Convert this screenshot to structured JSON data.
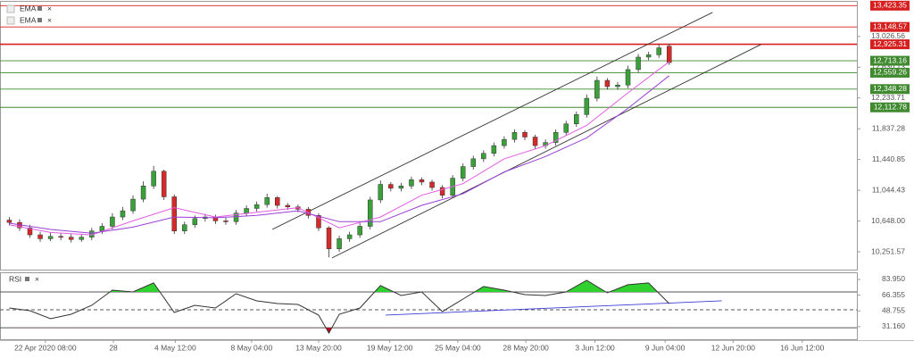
{
  "chart_data": [
    {
      "type": "candlestick",
      "open": [
        10660,
        10630,
        10560,
        10470,
        10420,
        10450,
        10440,
        10410,
        10440,
        10520,
        10580,
        10700,
        10780,
        10930,
        11100,
        11290,
        10960,
        10520,
        10600,
        10680,
        10700,
        10650,
        10640,
        10750,
        10810,
        10860,
        10950,
        10850,
        10830,
        10800,
        10720,
        10560,
        10290,
        10420,
        10470,
        10580,
        10920,
        11120,
        11070,
        11100,
        11180,
        11150,
        11080,
        10980,
        11200,
        11350,
        11450,
        11520,
        11620,
        11700,
        11790,
        11730,
        11620,
        11660,
        11790,
        11900,
        12020,
        12230,
        12460,
        12380,
        12400,
        12600,
        12760,
        12790,
        12900
      ],
      "high": [
        10700,
        10670,
        10600,
        10510,
        10500,
        10490,
        10480,
        10480,
        10560,
        10620,
        10750,
        10830,
        10980,
        11160,
        11360,
        11310,
        10990,
        10640,
        10720,
        10740,
        10730,
        10690,
        10790,
        10850,
        10900,
        11000,
        10970,
        10880,
        10860,
        10830,
        10750,
        10580,
        10460,
        10510,
        10620,
        10960,
        11170,
        11150,
        11140,
        11220,
        11210,
        11180,
        11110,
        11240,
        11390,
        11490,
        11560,
        11660,
        11740,
        11830,
        11820,
        11760,
        11700,
        11830,
        11940,
        12060,
        12280,
        12510,
        12490,
        12440,
        12650,
        12800,
        12830,
        12920,
        12930
      ],
      "low": [
        10590,
        10520,
        10430,
        10380,
        10390,
        10400,
        10370,
        10380,
        10400,
        10480,
        10540,
        10660,
        10740,
        10890,
        11060,
        10920,
        10480,
        10480,
        10560,
        10640,
        10610,
        10600,
        10600,
        10710,
        10770,
        10820,
        10810,
        10790,
        10760,
        10680,
        10520,
        10180,
        10250,
        10380,
        10430,
        10540,
        10880,
        11030,
        11030,
        11060,
        11110,
        11040,
        10940,
        10950,
        11160,
        11310,
        11410,
        11480,
        11580,
        11660,
        11690,
        11580,
        11580,
        11620,
        11750,
        11860,
        11980,
        12190,
        12340,
        12340,
        12360,
        12560,
        12720,
        12750,
        12660
      ],
      "close": [
        10630,
        10560,
        10470,
        10420,
        10450,
        10440,
        10410,
        10440,
        10520,
        10580,
        10700,
        10780,
        10930,
        11100,
        11290,
        10960,
        10520,
        10600,
        10680,
        10700,
        10650,
        10640,
        10750,
        10810,
        10860,
        10950,
        10850,
        10830,
        10800,
        10720,
        10560,
        10290,
        10420,
        10470,
        10580,
        10920,
        11120,
        11070,
        11100,
        11180,
        11150,
        11080,
        10980,
        11200,
        11350,
        11450,
        11520,
        11620,
        11700,
        11790,
        11730,
        11620,
        11660,
        11790,
        11900,
        12020,
        12230,
        12460,
        12380,
        12400,
        12600,
        12760,
        12790,
        12880,
        12690
      ],
      "up_color": "#3aa13a",
      "down_color": "#d42a2a",
      "series": [
        {
          "name": "EMA",
          "color": "#e35de3",
          "x": [
            0,
            4,
            8,
            12,
            16,
            20,
            24,
            28,
            32,
            36,
            40,
            44,
            48,
            52,
            56,
            60,
            64
          ],
          "values": [
            10600,
            10500,
            10470,
            10650,
            10820,
            10700,
            10760,
            10820,
            10560,
            10700,
            10980,
            11130,
            11450,
            11620,
            11880,
            12300,
            12700
          ]
        },
        {
          "name": "EMA",
          "color": "#9a3fd6",
          "x": [
            0,
            4,
            8,
            12,
            16,
            20,
            24,
            28,
            32,
            36,
            40,
            44,
            48,
            52,
            56,
            60,
            64
          ],
          "values": [
            10620,
            10540,
            10490,
            10570,
            10700,
            10690,
            10720,
            10780,
            10640,
            10640,
            10850,
            11000,
            11280,
            11480,
            11720,
            12100,
            12520
          ]
        }
      ],
      "trendlines": [
        {
          "x": [
            25.5,
            68.2
          ],
          "y": [
            10540,
            13336
          ],
          "color": "#333333"
        },
        {
          "x": [
            31.3,
            72.9
          ],
          "y": [
            10173,
            12923
          ],
          "color": "#333333"
        }
      ],
      "levels": [
        {
          "value": 13423.35,
          "label": "13,423.35",
          "color": "#d61f1f"
        },
        {
          "value": 13148.57,
          "label": "13,148.57",
          "color": "#d61f1f"
        },
        {
          "value": 12925.31,
          "label": "12,925.31",
          "color": "#d61f1f"
        },
        {
          "value": 12713.16,
          "label": "12,713.16",
          "color": "#3f8a2f"
        },
        {
          "value": 12559.26,
          "label": "12,559.26",
          "color": "#3f8a2f"
        },
        {
          "value": 12348.28,
          "label": "12,348.28",
          "color": "#3f8a2f"
        },
        {
          "value": 12112.78,
          "label": "12,112.78",
          "color": "#3f8a2f"
        }
      ],
      "xlim": [
        -0.9,
        82.2
      ],
      "ylim": [
        10022,
        13473
      ],
      "yticks": [
        {
          "value": 10251.57,
          "label": "10,251.57"
        },
        {
          "value": 10648.0,
          "label": "10,648.00"
        },
        {
          "value": 11044.43,
          "label": "11,044.43"
        },
        {
          "value": 11440.85,
          "label": "11,440.85"
        },
        {
          "value": 11837.28,
          "label": "11,837.28"
        },
        {
          "value": 12233.71,
          "label": "12,233.71"
        },
        {
          "value": 12630.13,
          "label": "12,630.13"
        },
        {
          "value": 13026.56,
          "label": "13,026.56"
        }
      ],
      "grid": false
    },
    {
      "type": "line",
      "series": [
        {
          "name": "RSI",
          "color": "#333333",
          "x": [
            0,
            2,
            4,
            6,
            8,
            10,
            12,
            14,
            16,
            18,
            20,
            22,
            24,
            26,
            28,
            30,
            31,
            32,
            34,
            36,
            38,
            40,
            42,
            44,
            46,
            48,
            50,
            52,
            54,
            56,
            58,
            60,
            62,
            64
          ],
          "values": [
            52,
            49,
            40,
            45,
            55,
            72,
            70,
            80,
            47,
            55,
            52,
            68,
            60,
            57,
            56,
            44,
            24,
            45,
            52,
            77,
            66,
            70,
            48,
            62,
            76,
            72,
            67,
            66,
            70,
            83,
            69,
            78,
            80,
            57
          ]
        }
      ],
      "overbought": 70,
      "midline": 50,
      "oversold": 30,
      "overbought_color": "#2fd12f",
      "oversold_color": "#c8001e",
      "trendlines": [
        {
          "x": [
            36.5,
            69.1
          ],
          "y": [
            44.1,
            60.0
          ],
          "color": "#3b3bd6"
        }
      ],
      "xlim": [
        -0.9,
        82.2
      ],
      "ylim": [
        17.1,
        91.9
      ],
      "yticks": [
        {
          "value": 31.16,
          "label": "31.160"
        },
        {
          "value": 48.755,
          "label": "48.755"
        },
        {
          "value": 66.355,
          "label": "66.355"
        },
        {
          "value": 83.95,
          "label": "83.950"
        }
      ],
      "xticks": [
        {
          "value": 3.5,
          "label": "22 Apr 2020 08:00"
        },
        {
          "value": 10.1,
          "label": "28"
        },
        {
          "value": 16.1,
          "label": "4 May 12:00"
        },
        {
          "value": 23.5,
          "label": "8 May 04:00"
        },
        {
          "value": 30.0,
          "label": "13 May 20:00"
        },
        {
          "value": 36.9,
          "label": "19 May 12:00"
        },
        {
          "value": 43.5,
          "label": "25 May 04:00"
        },
        {
          "value": 50.1,
          "label": "28 May 20:00"
        },
        {
          "value": 56.8,
          "label": "3 Jun 12:00"
        },
        {
          "value": 63.6,
          "label": "9 Jun 04:00"
        },
        {
          "value": 70.2,
          "label": "12 Jun 20:00"
        },
        {
          "value": 76.9,
          "label": "16 Jun 12:00"
        }
      ]
    }
  ]
}
